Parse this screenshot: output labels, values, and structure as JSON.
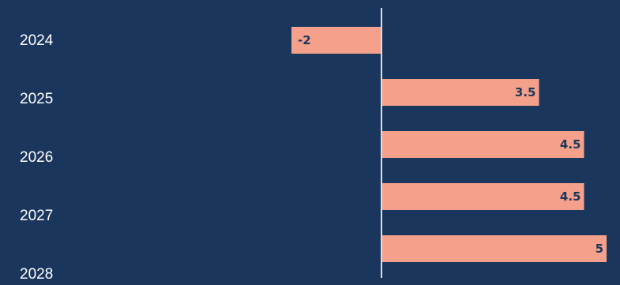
{
  "chart_data": {
    "type": "bar",
    "orientation": "horizontal",
    "categories": [
      "2024",
      "2025",
      "2026",
      "2027",
      "2028"
    ],
    "values": [
      -2,
      3.5,
      4.5,
      4.5,
      5
    ],
    "value_labels": [
      "-2",
      "3.5",
      "4.5",
      "4.5",
      "5"
    ],
    "title": "",
    "xlabel": "",
    "ylabel": "",
    "grid": false,
    "legend": "none",
    "colors": {
      "background": "#1b365d",
      "bar": "#f4a08a",
      "zero_line": "#d9dde3",
      "year_text": "#ffffff",
      "value_text": "#1b365d"
    }
  }
}
